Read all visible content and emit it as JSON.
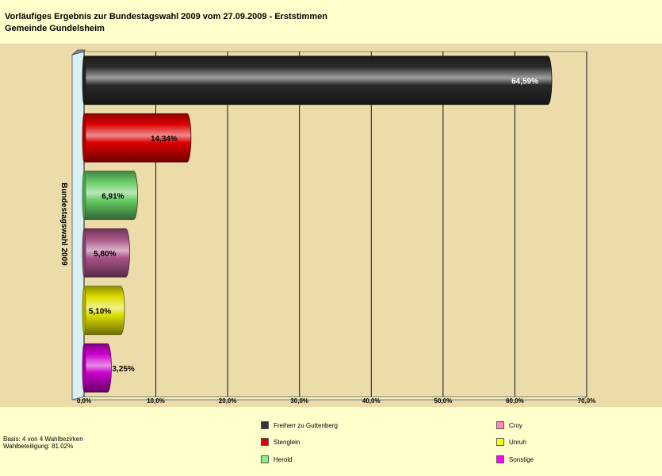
{
  "header": {
    "title": "Vorläufiges Ergebnis zur Bundestagswahl 2009 vom 27.09.2009 - Erststimmen",
    "subtitle": "Gemeinde Gundelsheim"
  },
  "chart_data": {
    "type": "bar",
    "orientation": "horizontal",
    "series_axis_label": "Bundestagswahl 2009",
    "categories": [
      "Freiherr zu Guttenberg",
      "Stenglein",
      "Herold",
      "Croy",
      "Unruh",
      "Sonstige"
    ],
    "values": [
      64.59,
      14.34,
      6.91,
      5.8,
      5.1,
      3.25
    ],
    "value_labels": [
      "64,59%",
      "14,34%",
      "6,91%",
      "5,80%",
      "5,10%",
      "3,25%"
    ],
    "colors": [
      "#2a2a2a",
      "#dd0000",
      "#66cc66",
      "#aa5588",
      "#dddd00",
      "#cc00cc"
    ],
    "label_colors": [
      "#ffffff",
      "#000000",
      "#000000",
      "#000000",
      "#000000",
      "#000000"
    ],
    "xlim": [
      0,
      70
    ],
    "xticks": [
      0,
      10,
      20,
      30,
      40,
      50,
      60,
      70
    ],
    "xtick_labels": [
      "0,0%",
      "10,0%",
      "20,0%",
      "30,0%",
      "40,0%",
      "50,0%",
      "60,0%",
      "70,0%"
    ],
    "grid": true,
    "legend_position": "bottom"
  },
  "legend": {
    "items": [
      {
        "label": "Freiherr zu Guttenberg",
        "color": "#333333"
      },
      {
        "label": "Stenglein",
        "color": "#dd0000"
      },
      {
        "label": "Herold",
        "color": "#88ee88"
      },
      {
        "label": "Croy",
        "color": "#ff88bb"
      },
      {
        "label": "Unruh",
        "color": "#ffff00"
      },
      {
        "label": "Sonstige",
        "color": "#ff00ff"
      }
    ]
  },
  "footer": {
    "basis": "Basis: 4 von 4 Wahlbezirken",
    "turnout": "Wahlbeteiligung: 81.02%"
  }
}
